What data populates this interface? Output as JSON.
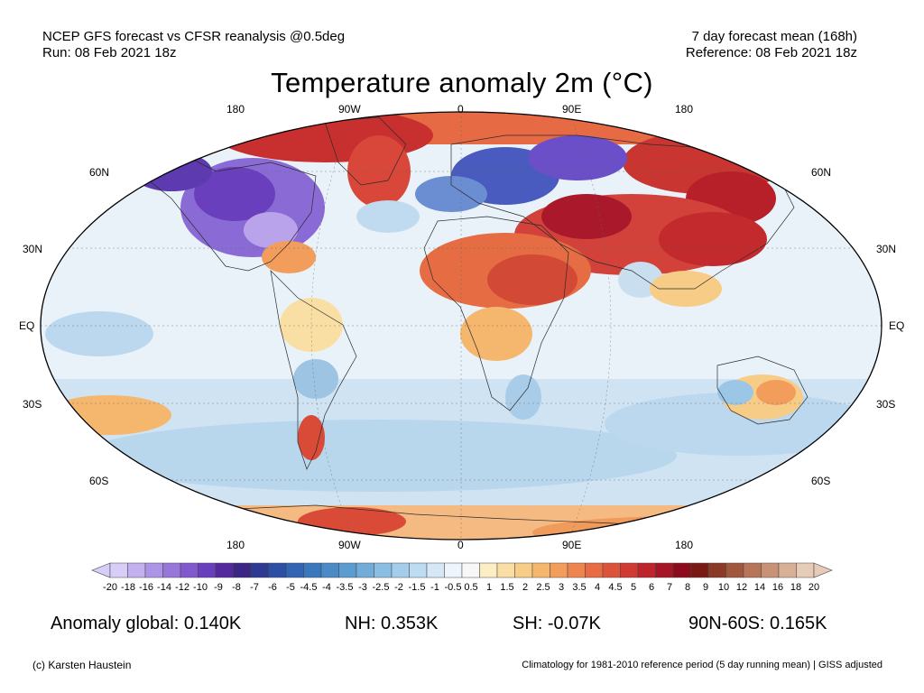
{
  "header": {
    "left_line1": "NCEP GFS forecast vs CFSR reanalysis @0.5deg",
    "left_line2": "Run: 08 Feb 2021 18z",
    "right_line1": "7 day forecast mean (168h)",
    "right_line2": "Reference: 08 Feb 2021 18z"
  },
  "title": "Temperature anomaly 2m (°C)",
  "map": {
    "lon_labels_top": [
      "180",
      "90W",
      "0",
      "90E",
      "180"
    ],
    "lon_labels_bottom": [
      "180",
      "90W",
      "0",
      "90E",
      "180"
    ],
    "lat_labels_left": [
      "60N",
      "30N",
      "EQ",
      "30S",
      "60S"
    ],
    "lat_labels_right": [
      "60N",
      "30N",
      "EQ",
      "30S",
      "60S"
    ]
  },
  "colorbar": {
    "ticks": [
      "-20",
      "-18",
      "-16",
      "-14",
      "-12",
      "-10",
      "-9",
      "-8",
      "-7",
      "-6",
      "-5",
      "-4.5",
      "-4",
      "-3.5",
      "-3",
      "-2.5",
      "-2",
      "-1.5",
      "-1",
      "-0.5",
      "0.5",
      "1",
      "1.5",
      "2",
      "2.5",
      "3",
      "3.5",
      "4",
      "4.5",
      "5",
      "6",
      "7",
      "8",
      "9",
      "10",
      "12",
      "14",
      "16",
      "18",
      "20"
    ],
    "colors": [
      "#d7cdf7",
      "#c3b1ef",
      "#ad94e6",
      "#9776da",
      "#8159ce",
      "#6a3fbd",
      "#54299e",
      "#3b2585",
      "#2e3a92",
      "#2c4fa3",
      "#3264b3",
      "#3b77bd",
      "#4a8ac7",
      "#5c9bd0",
      "#72acd9",
      "#89bde2",
      "#a3cdea",
      "#bddbf1",
      "#d6e8f6",
      "#edf4fb",
      "#f8f8f8",
      "#fbedc4",
      "#f9dfa3",
      "#f7cc86",
      "#f5b66e",
      "#f29d5c",
      "#ee844e",
      "#e76b43",
      "#dd533a",
      "#cf3a33",
      "#bd242c",
      "#a61526",
      "#8c0c1e",
      "#7a1a14",
      "#8a3a26",
      "#a1563e",
      "#b67459",
      "#c89276",
      "#d8b096",
      "#e6cbb8"
    ]
  },
  "stats": {
    "global": "Anomaly global: 0.140K",
    "nh": "NH: 0.353K",
    "sh": "SH: -0.07K",
    "band": "90N-60S: 0.165K"
  },
  "footer": {
    "left": "(c) Karsten Haustein",
    "right": "Climatology for 1981-2010 reference period (5 day running mean) | GISS adjusted"
  }
}
